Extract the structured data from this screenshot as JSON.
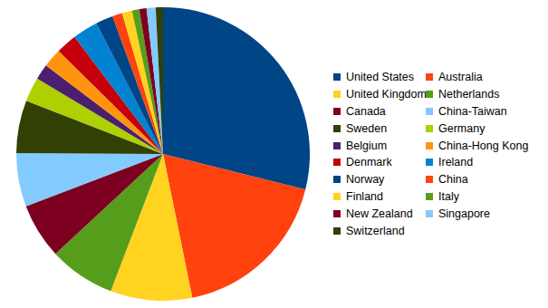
{
  "chart_data": {
    "type": "pie",
    "categories": [
      "United States",
      "Australia",
      "United Kingdom",
      "Netherlands",
      "Canada",
      "China-Taiwan",
      "Sweden",
      "Germany",
      "Belgium",
      "China-Hong Kong",
      "Denmark",
      "Ireland",
      "Norway",
      "China",
      "Finland",
      "Italy",
      "New Zealand",
      "Singapore",
      "Switzerland"
    ],
    "values": [
      28.9,
      17.9,
      9.0,
      7.3,
      6.1,
      5.9,
      5.8,
      2.7,
      1.7,
      2.1,
      2.3,
      2.8,
      1.9,
      1.1,
      1.1,
      0.8,
      0.8,
      1.0,
      0.8
    ],
    "colors": [
      "#004586",
      "#ff420e",
      "#ffd320",
      "#579d1c",
      "#7e0021",
      "#83caff",
      "#314004",
      "#aecf00",
      "#4b1f6f",
      "#ff950e",
      "#c5000b",
      "#0084d1",
      "#004586",
      "#ff420e",
      "#ffd320",
      "#579d1c",
      "#7e0021",
      "#83caff",
      "#314004"
    ],
    "legend": "right"
  }
}
